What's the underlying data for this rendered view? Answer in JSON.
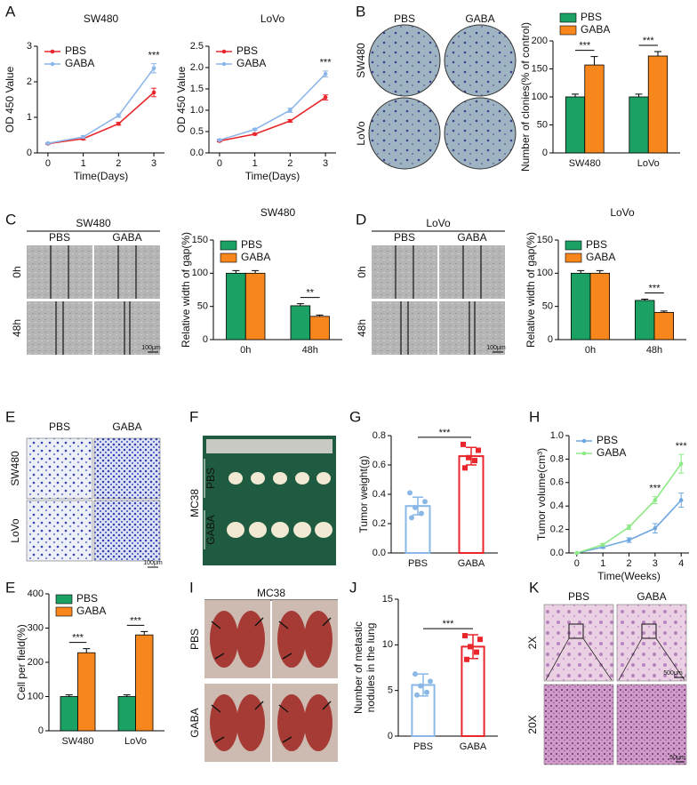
{
  "panels": [
    "A",
    "B",
    "C",
    "D",
    "E",
    "F",
    "G",
    "H",
    "E",
    "I",
    "J",
    "K"
  ],
  "chart_data": [
    {
      "type": "line",
      "title": "SW480",
      "x": [
        0,
        1,
        2,
        3
      ],
      "xlim": [
        -0.3,
        3.3
      ],
      "xticks": [
        0,
        1,
        2,
        3
      ],
      "ylim": [
        0,
        3
      ],
      "yticks": [
        0,
        1,
        2,
        3
      ],
      "xlabel": "Time(Days)",
      "ylabel": "OD 450 Value",
      "legend": "upper left",
      "series": [
        {
          "name": "PBS",
          "color": "#e8262b",
          "values": [
            0.26,
            0.4,
            0.82,
            1.7
          ],
          "errors": [
            0.02,
            0.03,
            0.04,
            0.12
          ]
        },
        {
          "name": "GABA",
          "color": "#8db6ea",
          "values": [
            0.27,
            0.45,
            1.05,
            2.38
          ],
          "errors": [
            0.02,
            0.03,
            0.05,
            0.13
          ]
        }
      ],
      "annotations": [
        {
          "x": 3,
          "text": "***"
        }
      ]
    },
    {
      "type": "line",
      "title": "LoVo",
      "x": [
        0,
        1,
        2,
        3
      ],
      "xlim": [
        -0.3,
        3.3
      ],
      "xticks": [
        0,
        1,
        2,
        3
      ],
      "ylim": [
        0,
        2.5
      ],
      "yticks": [
        {
          "value": 0,
          "label": "0.0"
        },
        0.5,
        {
          "value": 1,
          "label": "1.0"
        },
        1.5,
        {
          "value": 2,
          "label": "2.0"
        },
        2.5
      ],
      "xlabel": "Time(Days)",
      "ylabel": "OD 450 Value",
      "legend": "upper left",
      "series": [
        {
          "name": "PBS",
          "color": "#e8262b",
          "values": [
            0.28,
            0.44,
            0.75,
            1.3
          ],
          "errors": [
            0.02,
            0.02,
            0.03,
            0.06
          ]
        },
        {
          "name": "GABA",
          "color": "#8db6ea",
          "values": [
            0.3,
            0.55,
            1.0,
            1.85
          ],
          "errors": [
            0.02,
            0.02,
            0.05,
            0.07
          ]
        }
      ],
      "annotations": [
        {
          "x": 3,
          "text": "***"
        }
      ]
    },
    {
      "type": "bar",
      "categories": [
        "SW480",
        "LoVo"
      ],
      "ylim": [
        0,
        200
      ],
      "yticks": [
        0,
        50,
        100,
        150,
        200
      ],
      "ylabel": "Number of clonies(% of control)",
      "legend": "top",
      "series": [
        {
          "name": "PBS",
          "color": "#1aa163",
          "values": [
            100,
            100
          ],
          "errors": [
            5,
            5
          ]
        },
        {
          "name": "GABA",
          "color": "#f7871c",
          "values": [
            157,
            173
          ],
          "errors": [
            15,
            8
          ]
        }
      ],
      "annotations": [
        {
          "category": "SW480",
          "text": "***"
        },
        {
          "category": "LoVo",
          "text": "***"
        }
      ]
    },
    {
      "type": "bar",
      "title": "SW480",
      "categories": [
        "0h",
        "48h"
      ],
      "ylim": [
        0,
        150
      ],
      "yticks": [
        0,
        50,
        100,
        150
      ],
      "ylabel": "Relative width of gap(%)",
      "legend": "upper left",
      "series": [
        {
          "name": "PBS",
          "color": "#1aa163",
          "values": [
            100,
            51
          ],
          "errors": [
            4,
            3
          ]
        },
        {
          "name": "GABA",
          "color": "#f7871c",
          "values": [
            100,
            35
          ],
          "errors": [
            4,
            2
          ]
        }
      ],
      "annotations": [
        {
          "category": "48h",
          "text": "**"
        }
      ]
    },
    {
      "type": "bar",
      "title": "LoVo",
      "categories": [
        "0h",
        "48h"
      ],
      "ylim": [
        0,
        150
      ],
      "yticks": [
        0,
        50,
        100,
        150
      ],
      "ylabel": "Relative width of gap(%)",
      "legend": "upper left",
      "series": [
        {
          "name": "PBS",
          "color": "#1aa163",
          "values": [
            100,
            59
          ],
          "errors": [
            4,
            2
          ]
        },
        {
          "name": "GABA",
          "color": "#f7871c",
          "values": [
            100,
            41
          ],
          "errors": [
            4,
            2
          ]
        }
      ],
      "annotations": [
        {
          "category": "48h",
          "text": "***"
        }
      ]
    },
    {
      "type": "dotbar",
      "categories": [
        "PBS",
        "GABA"
      ],
      "values": [
        0.32,
        0.66
      ],
      "errors": [
        0.06,
        0.06
      ],
      "colors": [
        "#8ab8e6",
        "#e8262b"
      ],
      "points": [
        [
          0.41,
          0.35,
          0.31,
          0.27,
          0.24
        ],
        [
          0.74,
          0.7,
          0.65,
          0.63,
          0.58
        ]
      ],
      "ylim": [
        0,
        0.8
      ],
      "yticks": [
        {
          "value": 0,
          "label": "0.0"
        },
        0.2,
        0.4,
        0.6,
        0.8
      ],
      "ylabel": "Tumor weight(g)",
      "annotations": [
        {
          "text": "***"
        }
      ]
    },
    {
      "type": "line",
      "x": [
        0,
        1,
        2,
        3,
        4
      ],
      "xlim": [
        -0.3,
        4.3
      ],
      "xticks": [
        0,
        1,
        2,
        3,
        4
      ],
      "ylim": [
        0,
        1
      ],
      "yticks": [
        {
          "value": 0,
          "label": "0.0"
        },
        0.2,
        0.4,
        0.6,
        0.8,
        {
          "value": 1,
          "label": "1.0"
        }
      ],
      "xlabel": "Time(Weeks)",
      "ylabel": "Tumor volume(cm³)",
      "legend": "upper left",
      "series": [
        {
          "name": "PBS",
          "color": "#6fa8e0",
          "values": [
            0,
            0.05,
            0.11,
            0.21,
            0.45
          ],
          "errors": [
            0,
            0.01,
            0.02,
            0.04,
            0.06
          ]
        },
        {
          "name": "GABA",
          "color": "#8eea86",
          "values": [
            0,
            0.07,
            0.22,
            0.45,
            0.76
          ],
          "errors": [
            0,
            0.01,
            0.02,
            0.03,
            0.08
          ]
        }
      ],
      "annotations": [
        {
          "x": 3,
          "text": "***"
        },
        {
          "x": 4,
          "text": "***"
        }
      ]
    },
    {
      "type": "bar",
      "categories": [
        "SW480",
        "LoVo"
      ],
      "ylim": [
        0,
        400
      ],
      "yticks": [
        0,
        100,
        200,
        300,
        400
      ],
      "ylabel": "Cell per field(%)",
      "legend": "upper left",
      "series": [
        {
          "name": "PBS",
          "color": "#1aa163",
          "values": [
            100,
            100
          ],
          "errors": [
            5,
            5
          ]
        },
        {
          "name": "GABA",
          "color": "#f7871c",
          "values": [
            228,
            280
          ],
          "errors": [
            12,
            10
          ]
        }
      ],
      "annotations": [
        {
          "category": "SW480",
          "text": "***"
        },
        {
          "category": "LoVo",
          "text": "***"
        }
      ]
    },
    {
      "type": "dotbar",
      "categories": [
        "PBS",
        "GABA"
      ],
      "values": [
        5.6,
        9.8
      ],
      "errors": [
        1.2,
        1.3
      ],
      "colors": [
        "#8ab8e6",
        "#e8262b"
      ],
      "points": [
        [
          6.8,
          6.0,
          5.5,
          4.8,
          4.5
        ],
        [
          11.0,
          10.6,
          9.8,
          9.2,
          8.4
        ]
      ],
      "ylim": [
        0,
        15
      ],
      "yticks": [
        0,
        5,
        10,
        15
      ],
      "ylabel": [
        "Number of metastic",
        "nodules in the lung"
      ],
      "annotations": [
        {
          "text": "***"
        }
      ]
    }
  ],
  "images": {
    "B": {
      "columns": [
        "PBS",
        "GABA"
      ],
      "rows": [
        "SW480",
        "LoVo"
      ]
    },
    "C": {
      "title": "SW480",
      "columns": [
        "PBS",
        "GABA"
      ],
      "rows": [
        "0h",
        "48h"
      ],
      "scale": "100μm"
    },
    "D": {
      "title": "LoVo",
      "columns": [
        "PBS",
        "GABA"
      ],
      "rows": [
        "0h",
        "48h"
      ],
      "scale": "100μm"
    },
    "E": {
      "columns": [
        "PBS",
        "GABA"
      ],
      "rows": [
        "SW480",
        "LoVo"
      ],
      "scale": "100μm"
    },
    "F": {
      "model": "MC38",
      "rows": [
        "PBS",
        "GABA"
      ]
    },
    "I": {
      "title": "MC38",
      "rows": [
        "PBS",
        "GABA"
      ]
    },
    "K": {
      "columns": [
        "PBS",
        "GABA"
      ],
      "rows": [
        "2X",
        "20X"
      ],
      "scales": [
        "500μm",
        "50μm"
      ]
    }
  }
}
